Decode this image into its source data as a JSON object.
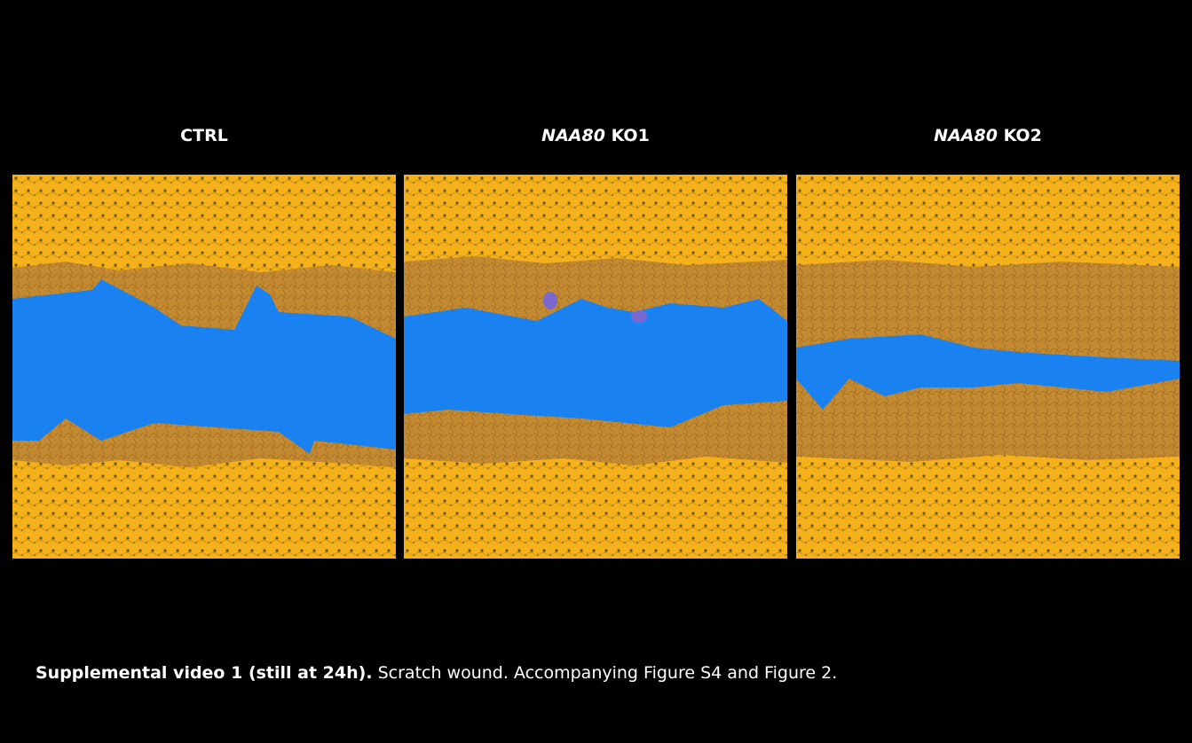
{
  "panels": [
    {
      "title": "CTRL"
    },
    {
      "gene": "NAA80",
      "label": "KO1"
    },
    {
      "gene": "NAA80",
      "label": "KO2"
    }
  ],
  "caption": {
    "bold": "Supplemental video 1 (still at 24h).",
    "text": "Scratch wound. Accompanying Figure S4 and Figure 2."
  }
}
